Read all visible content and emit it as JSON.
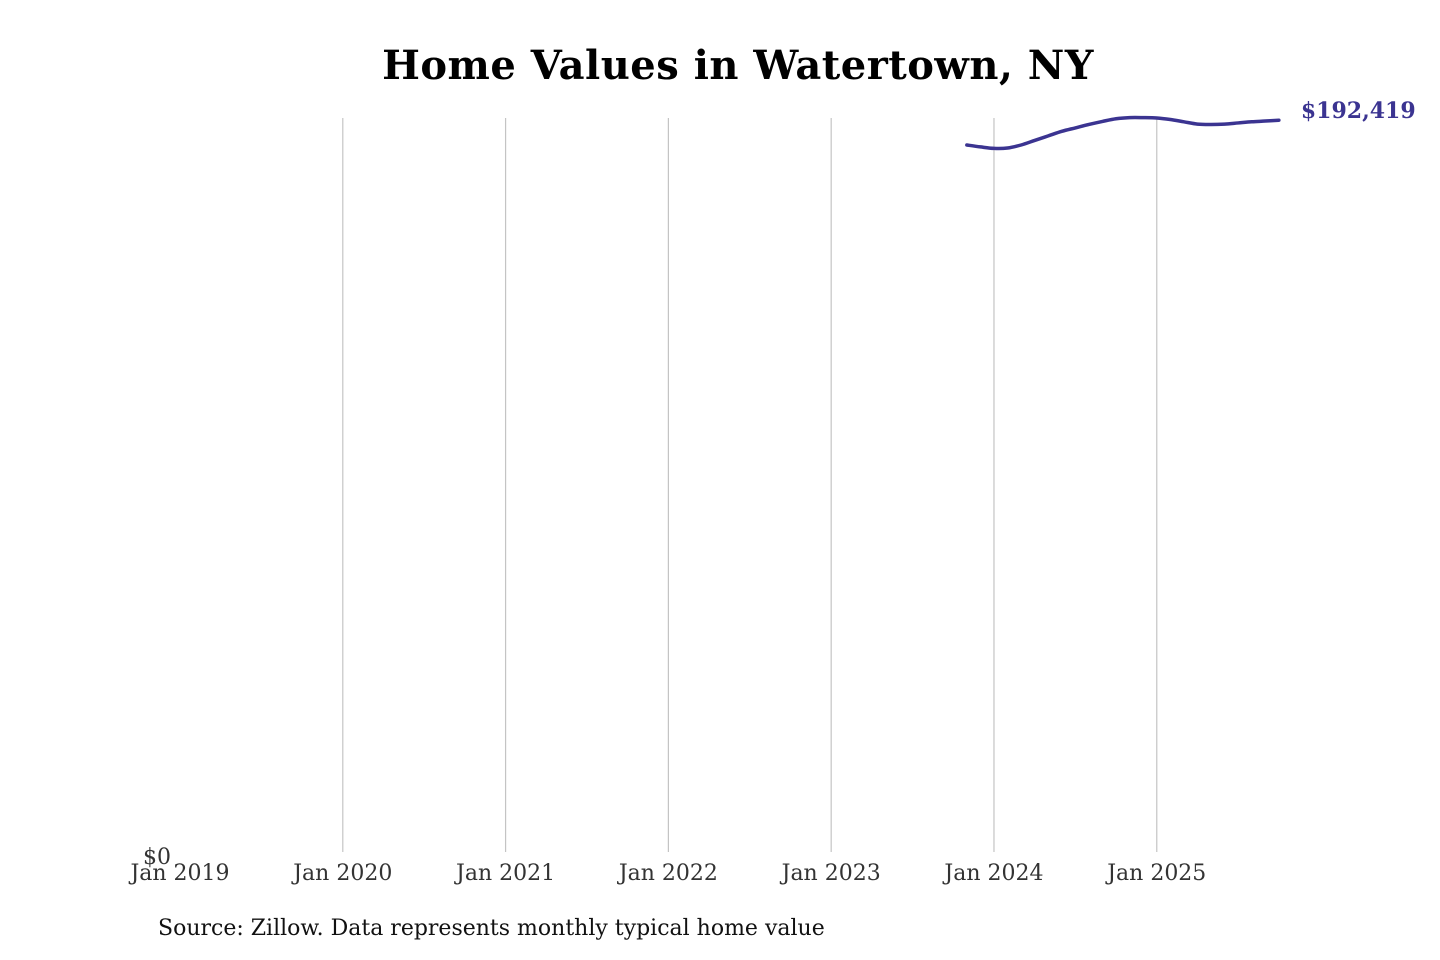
{
  "chart_data": {
    "type": "line",
    "title": "Home Values in Watertown, NY",
    "xlabel": "",
    "ylabel": "",
    "x_tick_labels": [
      "Jan 2019",
      "Jan 2020",
      "Jan 2021",
      "Jan 2022",
      "Jan 2023",
      "Jan 2024",
      "Jan 2025"
    ],
    "y_tick_labels": [
      "$0"
    ],
    "xlim": [
      "2019-01",
      "2025-12"
    ],
    "ylim": [
      0,
      193000
    ],
    "grid": "vertical",
    "legend": "none",
    "series": [
      {
        "color": "#3b3491",
        "x": [
          "2023-11",
          "2023-12",
          "2024-01",
          "2024-02",
          "2024-03",
          "2024-04",
          "2024-05",
          "2024-06",
          "2024-07",
          "2024-08",
          "2024-09",
          "2024-10",
          "2024-11",
          "2024-12",
          "2025-01",
          "2025-02",
          "2025-03",
          "2025-04",
          "2025-05",
          "2025-06",
          "2025-07",
          "2025-08",
          "2025-09",
          "2025-10"
        ],
        "values": [
          185900,
          185400,
          185000,
          185100,
          185900,
          187100,
          188300,
          189500,
          190400,
          191300,
          192100,
          192800,
          193100,
          193100,
          193000,
          192600,
          192000,
          191400,
          191300,
          191400,
          191700,
          192000,
          192200,
          192419
        ],
        "end_label": "$192,419"
      }
    ],
    "source": "Source: Zillow. Data represents monthly typical home value"
  }
}
